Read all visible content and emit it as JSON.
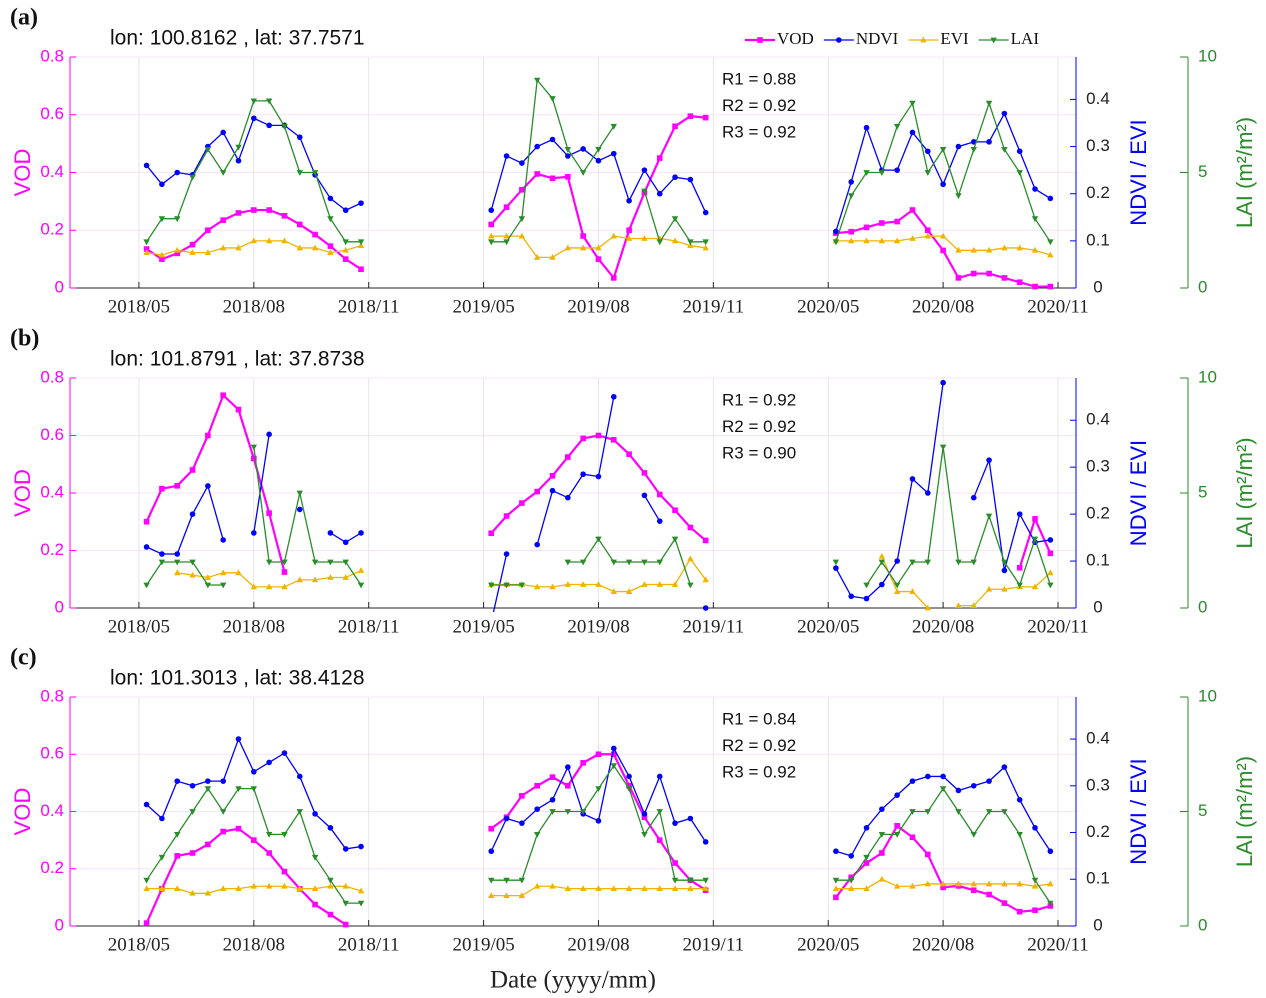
{
  "chart_data": [
    {
      "type": "line",
      "panel_label": "(a)",
      "title": "lon: 100.8162 , lat: 37.7571",
      "annotations": [
        "R1 = 0.88",
        "R2 = 0.92",
        "R3 = 0.92"
      ],
      "ylabel": "VOD",
      "y2label": "NDVI / EVI",
      "y3label": "LAI (m²/m²)",
      "legend": "top-right",
      "grid": true,
      "x": [
        0.2,
        0.6,
        1,
        1.4,
        1.8,
        2.2,
        2.6,
        3,
        3.4,
        3.8,
        4.2,
        4.6,
        5,
        5.4,
        5.8,
        9.2,
        9.6,
        10,
        10.4,
        10.8,
        11.2,
        11.6,
        12,
        12.4,
        12.8,
        13.2,
        13.6,
        14,
        14.4,
        14.8,
        18.2,
        18.6,
        19,
        19.4,
        19.8,
        20.2,
        20.6,
        21,
        21.4,
        21.8,
        22.2,
        22.6,
        23,
        23.4,
        23.8
      ],
      "xlim": [
        -1.8,
        24.47
      ],
      "xticks": [
        {
          "value": 0,
          "label": "2018/05"
        },
        {
          "value": 3,
          "label": "2018/08"
        },
        {
          "value": 6,
          "label": "2018/11"
        },
        {
          "value": 9,
          "label": "2019/05"
        },
        {
          "value": 12,
          "label": "2019/08"
        },
        {
          "value": 15,
          "label": "2019/11"
        },
        {
          "value": 18,
          "label": "2020/05"
        },
        {
          "value": 21,
          "label": "2020/08"
        },
        {
          "value": 24,
          "label": "2020/11"
        }
      ],
      "ylim": [
        0,
        0.8
      ],
      "yticks": [
        0,
        0.2,
        0.4,
        0.6,
        0.8
      ],
      "y2lim": [
        0,
        0.49
      ],
      "y2ticks": [
        0,
        0.1,
        0.2,
        0.3,
        0.4
      ],
      "y3lim": [
        0,
        10
      ],
      "y3ticks": [
        0,
        5,
        10
      ],
      "series": [
        {
          "name": "VOD",
          "color": "#ff00ff",
          "marker": "square",
          "axis": "y",
          "values": [
            0.135,
            0.1,
            0.12,
            0.15,
            0.2,
            0.235,
            0.26,
            0.27,
            0.27,
            0.25,
            0.22,
            0.185,
            0.145,
            0.1,
            0.065,
            0.22,
            0.28,
            0.34,
            0.395,
            0.38,
            0.385,
            0.18,
            0.1,
            0.035,
            0.2,
            0.33,
            0.45,
            0.56,
            0.595,
            0.59,
            0.19,
            0.195,
            0.21,
            0.225,
            0.23,
            0.27,
            0.2,
            0.13,
            0.035,
            0.05,
            0.05,
            0.035,
            0.02,
            0.005,
            0.005
          ]
        },
        {
          "name": "NDVI",
          "color": "#0000ff",
          "marker": "circle",
          "axis": "y2",
          "values": [
            0.26,
            0.22,
            0.245,
            0.24,
            0.3,
            0.33,
            0.27,
            0.36,
            0.345,
            0.345,
            0.32,
            0.24,
            0.19,
            0.165,
            0.18,
            0.165,
            0.28,
            0.265,
            0.3,
            0.315,
            0.28,
            0.295,
            0.27,
            0.285,
            0.185,
            0.25,
            0.2,
            0.235,
            0.23,
            0.16,
            0.12,
            0.225,
            0.34,
            0.25,
            0.25,
            0.33,
            0.29,
            0.22,
            0.3,
            0.31,
            0.31,
            0.37,
            0.29,
            0.21,
            0.19
          ]
        },
        {
          "name": "EVI",
          "color": "#f0b400",
          "marker": "triangle-up",
          "axis": "y2",
          "values": [
            0.075,
            0.07,
            0.08,
            0.075,
            0.075,
            0.085,
            0.085,
            0.1,
            0.1,
            0.1,
            0.085,
            0.085,
            0.075,
            0.08,
            0.09,
            0.11,
            0.11,
            0.11,
            0.065,
            0.065,
            0.085,
            0.085,
            0.085,
            0.11,
            0.105,
            0.105,
            0.105,
            0.1,
            0.09,
            0.085,
            0.1,
            0.1,
            0.1,
            0.1,
            0.1,
            0.105,
            0.11,
            0.11,
            0.08,
            0.08,
            0.08,
            0.085,
            0.085,
            0.08,
            0.07
          ]
        },
        {
          "name": "LAI",
          "color": "#2a8c2a",
          "marker": "triangle-down",
          "axis": "y3",
          "values": [
            2.0,
            3.0,
            3.0,
            4.8,
            6.0,
            5.0,
            6.1,
            8.1,
            8.1,
            7.0,
            5.0,
            5.0,
            3.0,
            2.0,
            2.0,
            2.0,
            2.0,
            3.0,
            9.0,
            8.2,
            6.0,
            5.0,
            6.0,
            7.0,
            null,
            4.2,
            2.0,
            3.0,
            2.0,
            2.0,
            2.0,
            4.0,
            5.0,
            5.0,
            7.0,
            8.0,
            5.0,
            6.0,
            4.0,
            6.0,
            8.0,
            6.0,
            5.0,
            3.0,
            2.0
          ]
        }
      ]
    },
    {
      "type": "line",
      "panel_label": "(b)",
      "title": "lon: 101.8791 , lat: 37.8738",
      "annotations": [
        "R1 = 0.92",
        "R2 = 0.92",
        "R3 = 0.90"
      ],
      "ylabel": "VOD",
      "y2label": "NDVI / EVI",
      "y3label": "LAI (m²/m²)",
      "grid": true,
      "x": [
        0.2,
        0.6,
        1,
        1.4,
        1.8,
        2.2,
        2.6,
        3,
        3.4,
        3.8,
        4.2,
        4.6,
        5,
        5.4,
        5.8,
        9.2,
        9.6,
        10,
        10.4,
        10.8,
        11.2,
        11.6,
        12,
        12.4,
        12.8,
        13.2,
        13.6,
        14,
        14.4,
        14.8,
        18.2,
        18.6,
        19,
        19.4,
        19.8,
        20.2,
        20.6,
        21,
        21.4,
        21.8,
        22.2,
        22.6,
        23,
        23.4,
        23.8
      ],
      "xlim": [
        -1.8,
        24.47
      ],
      "xticks": [
        {
          "value": 0,
          "label": "2018/05"
        },
        {
          "value": 3,
          "label": "2018/08"
        },
        {
          "value": 6,
          "label": "2018/11"
        },
        {
          "value": 9,
          "label": "2019/05"
        },
        {
          "value": 12,
          "label": "2019/08"
        },
        {
          "value": 15,
          "label": "2019/11"
        },
        {
          "value": 18,
          "label": "2020/05"
        },
        {
          "value": 21,
          "label": "2020/08"
        },
        {
          "value": 24,
          "label": "2020/11"
        }
      ],
      "ylim": [
        0,
        0.8
      ],
      "yticks": [
        0,
        0.2,
        0.4,
        0.6,
        0.8
      ],
      "y2lim": [
        0,
        0.49
      ],
      "y2ticks": [
        0,
        0.1,
        0.2,
        0.3,
        0.4
      ],
      "y3lim": [
        0,
        10
      ],
      "y3ticks": [
        0,
        5,
        10
      ],
      "series": [
        {
          "name": "VOD",
          "color": "#ff00ff",
          "marker": "square",
          "axis": "y",
          "values": [
            0.3,
            0.415,
            0.425,
            0.48,
            0.6,
            0.74,
            0.69,
            0.52,
            0.33,
            0.125,
            null,
            null,
            null,
            null,
            null,
            0.26,
            0.32,
            0.365,
            0.405,
            0.46,
            0.525,
            0.59,
            0.6,
            0.585,
            0.535,
            0.47,
            0.395,
            0.34,
            0.28,
            0.235,
            null,
            null,
            null,
            null,
            null,
            null,
            null,
            null,
            null,
            null,
            null,
            null,
            0.14,
            0.31,
            0.19
          ]
        },
        {
          "name": "NDVI",
          "color": "#0000ff",
          "marker": "circle",
          "axis": "y2",
          "values": [
            0.13,
            0.115,
            0.115,
            0.2,
            0.26,
            0.145,
            null,
            0.16,
            0.37,
            null,
            0.21,
            null,
            0.16,
            0.14,
            0.16,
            -0.03,
            0.115,
            null,
            0.135,
            0.25,
            0.235,
            0.285,
            0.28,
            0.45,
            null,
            0.24,
            0.185,
            null,
            null,
            0.0,
            0.085,
            0.025,
            0.02,
            0.05,
            0.1,
            0.275,
            0.245,
            0.48,
            null,
            0.235,
            0.315,
            0.08,
            0.2,
            0.14,
            0.145
          ]
        },
        {
          "name": "EVI",
          "color": "#f0b400",
          "marker": "triangle-up",
          "axis": "y2",
          "values": [
            null,
            null,
            0.075,
            0.07,
            0.065,
            0.075,
            0.075,
            0.045,
            0.045,
            0.045,
            0.06,
            0.06,
            0.065,
            0.065,
            0.08,
            0.05,
            0.05,
            0.05,
            0.045,
            0.045,
            0.05,
            0.05,
            0.05,
            0.035,
            0.035,
            0.05,
            0.05,
            0.05,
            0.105,
            0.06,
            null,
            null,
            null,
            0.11,
            0.035,
            0.035,
            0.0,
            null,
            0.005,
            0.005,
            0.04,
            0.04,
            0.045,
            0.045,
            0.075
          ]
        },
        {
          "name": "LAI",
          "color": "#2a8c2a",
          "marker": "triangle-down",
          "axis": "y3",
          "values": [
            1.0,
            2.0,
            2.0,
            2.0,
            1.0,
            1.0,
            null,
            7.0,
            2.0,
            2.0,
            5.0,
            2.0,
            2.0,
            2.0,
            1.0,
            1.0,
            1.0,
            1.0,
            null,
            null,
            2.0,
            2.0,
            3.0,
            2.0,
            2.0,
            2.0,
            2.0,
            3.0,
            1.0,
            null,
            2.0,
            null,
            1.0,
            2.0,
            1.0,
            2.0,
            2.0,
            7.0,
            2.0,
            2.0,
            4.0,
            2.0,
            1.0,
            3.0,
            1.0
          ]
        }
      ]
    },
    {
      "type": "line",
      "panel_label": "(c)",
      "title": "lon: 101.3013 , lat: 38.4128",
      "annotations": [
        "R1 = 0.84",
        "R2 = 0.92",
        "R3 = 0.92"
      ],
      "ylabel": "VOD",
      "y2label": "NDVI / EVI",
      "y3label": "LAI (m²/m²)",
      "xlabel": "Date (yyyy/mm)",
      "grid": true,
      "x": [
        0.2,
        0.6,
        1,
        1.4,
        1.8,
        2.2,
        2.6,
        3,
        3.4,
        3.8,
        4.2,
        4.6,
        5,
        5.4,
        5.8,
        9.2,
        9.6,
        10,
        10.4,
        10.8,
        11.2,
        11.6,
        12,
        12.4,
        12.8,
        13.2,
        13.6,
        14,
        14.4,
        14.8,
        18.2,
        18.6,
        19,
        19.4,
        19.8,
        20.2,
        20.6,
        21,
        21.4,
        21.8,
        22.2,
        22.6,
        23,
        23.4,
        23.8
      ],
      "xlim": [
        -1.8,
        24.47
      ],
      "xticks": [
        {
          "value": 0,
          "label": "2018/05"
        },
        {
          "value": 3,
          "label": "2018/08"
        },
        {
          "value": 6,
          "label": "2018/11"
        },
        {
          "value": 9,
          "label": "2019/05"
        },
        {
          "value": 12,
          "label": "2019/08"
        },
        {
          "value": 15,
          "label": "2019/11"
        },
        {
          "value": 18,
          "label": "2020/05"
        },
        {
          "value": 21,
          "label": "2020/08"
        },
        {
          "value": 24,
          "label": "2020/11"
        }
      ],
      "ylim": [
        0,
        0.8
      ],
      "yticks": [
        0,
        0.2,
        0.4,
        0.6,
        0.8
      ],
      "y2lim": [
        0,
        0.49
      ],
      "y2ticks": [
        0,
        0.1,
        0.2,
        0.3,
        0.4
      ],
      "y3lim": [
        0,
        10
      ],
      "y3ticks": [
        0,
        5,
        10
      ],
      "series": [
        {
          "name": "VOD",
          "color": "#ff00ff",
          "marker": "square",
          "axis": "y",
          "values": [
            0.01,
            0.13,
            0.245,
            0.255,
            0.285,
            0.33,
            0.34,
            0.3,
            0.255,
            0.19,
            0.13,
            0.075,
            0.04,
            0.005,
            null,
            0.34,
            0.38,
            0.455,
            0.49,
            0.52,
            0.49,
            0.57,
            0.6,
            0.6,
            0.49,
            0.38,
            0.3,
            0.22,
            0.16,
            0.125,
            0.1,
            0.17,
            0.22,
            0.255,
            0.35,
            0.31,
            0.25,
            0.135,
            0.14,
            0.125,
            0.11,
            0.08,
            0.05,
            0.055,
            0.07
          ]
        },
        {
          "name": "NDVI",
          "color": "#0000ff",
          "marker": "circle",
          "axis": "y2",
          "values": [
            0.26,
            0.23,
            0.31,
            0.3,
            0.31,
            0.31,
            0.4,
            0.33,
            0.35,
            0.37,
            0.32,
            0.24,
            0.21,
            0.165,
            0.17,
            0.16,
            0.23,
            0.22,
            0.25,
            0.27,
            0.34,
            0.24,
            0.225,
            0.38,
            0.32,
            0.24,
            0.32,
            0.22,
            0.23,
            0.18,
            0.16,
            0.15,
            0.21,
            0.25,
            0.28,
            0.31,
            0.32,
            0.32,
            0.29,
            0.3,
            0.31,
            0.34,
            0.27,
            0.21,
            0.16
          ]
        },
        {
          "name": "EVI",
          "color": "#f0b400",
          "marker": "triangle-up",
          "axis": "y2",
          "values": [
            0.08,
            0.08,
            0.08,
            0.07,
            0.07,
            0.08,
            0.08,
            0.085,
            0.085,
            0.085,
            0.08,
            0.08,
            0.085,
            0.085,
            0.075,
            0.065,
            0.065,
            0.065,
            0.085,
            0.085,
            0.08,
            0.08,
            0.08,
            0.08,
            0.08,
            0.08,
            0.08,
            0.08,
            0.08,
            0.08,
            0.08,
            0.08,
            0.08,
            0.1,
            0.085,
            0.085,
            0.09,
            0.09,
            0.09,
            0.09,
            0.09,
            0.09,
            0.09,
            0.085,
            0.09
          ]
        },
        {
          "name": "LAI",
          "color": "#2a8c2a",
          "marker": "triangle-down",
          "axis": "y3",
          "values": [
            2.0,
            3.0,
            4.0,
            5.0,
            6.0,
            5.0,
            6.0,
            6.0,
            4.0,
            4.0,
            5.0,
            3.0,
            2.0,
            1.0,
            1.0,
            2.0,
            2.0,
            2.0,
            4.0,
            5.0,
            5.0,
            5.0,
            6.0,
            7.0,
            6.0,
            4.0,
            5.0,
            2.0,
            2.0,
            2.0,
            2.0,
            2.0,
            3.0,
            4.0,
            4.0,
            5.0,
            5.0,
            6.0,
            5.0,
            4.0,
            5.0,
            5.0,
            4.0,
            2.0,
            1.0
          ]
        }
      ]
    }
  ]
}
